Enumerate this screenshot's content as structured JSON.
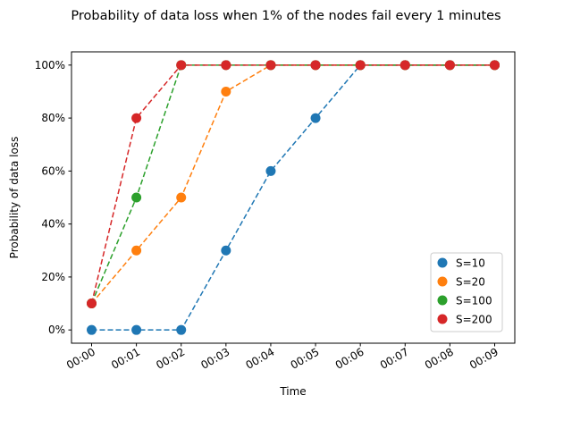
{
  "chart_data": {
    "type": "line",
    "title": "Probability of data loss when 1% of the nodes fail every 1 minutes",
    "xlabel": "Time",
    "ylabel": "Probability of data loss",
    "x": [
      "00:00",
      "00:01",
      "00:02",
      "00:03",
      "00:04",
      "00:05",
      "00:06",
      "00:07",
      "00:08",
      "00:09"
    ],
    "yticks": [
      "0%",
      "20%",
      "40%",
      "60%",
      "80%",
      "100%"
    ],
    "ylim": [
      -0.05,
      1.05
    ],
    "grid": false,
    "legend_position": "lower-right",
    "line_style": "dashed",
    "marker": "circle",
    "series": [
      {
        "name": "S=10",
        "color": "#1f77b4",
        "values": [
          0,
          0,
          0,
          0.3,
          0.6,
          0.8,
          1,
          1,
          1,
          1
        ]
      },
      {
        "name": "S=20",
        "color": "#ff7f0e",
        "values": [
          0.1,
          0.3,
          0.5,
          0.9,
          1,
          1,
          1,
          1,
          1,
          1
        ]
      },
      {
        "name": "S=100",
        "color": "#2ca02c",
        "values": [
          0.1,
          0.5,
          1,
          1,
          1,
          1,
          1,
          1,
          1,
          1
        ]
      },
      {
        "name": "S=200",
        "color": "#d62728",
        "values": [
          0.1,
          0.8,
          1,
          1,
          1,
          1,
          1,
          1,
          1,
          1
        ]
      }
    ]
  }
}
